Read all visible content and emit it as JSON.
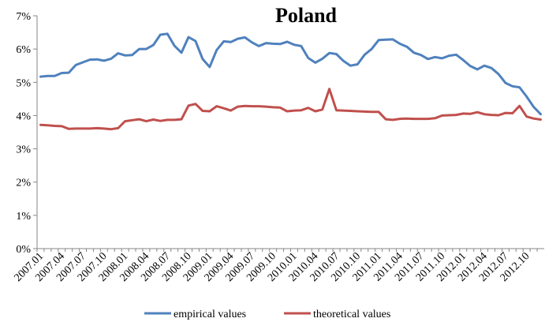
{
  "chart_data": {
    "type": "line",
    "title": "Poland",
    "xlabel": "",
    "ylabel": "",
    "ylim": [
      0,
      7
    ],
    "y_ticks": [
      "0%",
      "1%",
      "2%",
      "3%",
      "4%",
      "5%",
      "6%",
      "7%"
    ],
    "grid": false,
    "legend_position": "bottom",
    "x_tick_labels": [
      "2007.01",
      "2007.04",
      "2007.07",
      "2007.10",
      "2008.01",
      "2008.04",
      "2008.07",
      "2008.10",
      "2009.01",
      "2009.04",
      "2009.07",
      "2009.10",
      "2010.01",
      "2010.04",
      "2010.07",
      "2010.10",
      "2011.01",
      "2011.04",
      "2011.07",
      "2011.10",
      "2012.01",
      "2012.04",
      "2012.07",
      "2012.10"
    ],
    "x": [
      "2007.01",
      "2007.02",
      "2007.03",
      "2007.04",
      "2007.05",
      "2007.06",
      "2007.07",
      "2007.08",
      "2007.09",
      "2007.10",
      "2007.11",
      "2007.12",
      "2008.01",
      "2008.02",
      "2008.03",
      "2008.04",
      "2008.05",
      "2008.06",
      "2008.07",
      "2008.08",
      "2008.09",
      "2008.10",
      "2008.11",
      "2008.12",
      "2009.01",
      "2009.02",
      "2009.03",
      "2009.04",
      "2009.05",
      "2009.06",
      "2009.07",
      "2009.08",
      "2009.09",
      "2009.10",
      "2009.11",
      "2009.12",
      "2010.01",
      "2010.02",
      "2010.03",
      "2010.04",
      "2010.05",
      "2010.06",
      "2010.07",
      "2010.08",
      "2010.09",
      "2010.10",
      "2010.11",
      "2010.12",
      "2011.01",
      "2011.02",
      "2011.03",
      "2011.04",
      "2011.05",
      "2011.06",
      "2011.07",
      "2011.08",
      "2011.09",
      "2011.10",
      "2011.11",
      "2011.12",
      "2012.01",
      "2012.02",
      "2012.03",
      "2012.04",
      "2012.05",
      "2012.06",
      "2012.07",
      "2012.08",
      "2012.09",
      "2012.10",
      "2012.11",
      "2012.12"
    ],
    "series": [
      {
        "name": "empirical values",
        "color": "#4F81BD",
        "values": [
          5.17,
          5.19,
          5.19,
          5.28,
          5.29,
          5.52,
          5.6,
          5.68,
          5.69,
          5.65,
          5.71,
          5.87,
          5.81,
          5.82,
          6.0,
          6.0,
          6.12,
          6.43,
          6.46,
          6.1,
          5.89,
          6.36,
          6.24,
          5.7,
          5.46,
          5.97,
          6.23,
          6.21,
          6.31,
          6.35,
          6.2,
          6.09,
          6.18,
          6.16,
          6.15,
          6.22,
          6.13,
          6.09,
          5.73,
          5.59,
          5.71,
          5.88,
          5.85,
          5.64,
          5.5,
          5.54,
          5.83,
          6.0,
          6.27,
          6.28,
          6.29,
          6.16,
          6.07,
          5.89,
          5.82,
          5.7,
          5.76,
          5.72,
          5.8,
          5.83,
          5.67,
          5.49,
          5.39,
          5.5,
          5.43,
          5.25,
          4.98,
          4.88,
          4.85,
          4.57,
          4.26,
          4.04
        ]
      },
      {
        "name": "theoretical values",
        "color": "#C0504D",
        "values": [
          3.72,
          3.71,
          3.69,
          3.68,
          3.6,
          3.61,
          3.61,
          3.61,
          3.62,
          3.61,
          3.59,
          3.62,
          3.83,
          3.86,
          3.89,
          3.83,
          3.88,
          3.84,
          3.87,
          3.87,
          3.89,
          4.3,
          4.35,
          4.14,
          4.13,
          4.28,
          4.22,
          4.15,
          4.27,
          4.29,
          4.28,
          4.28,
          4.27,
          4.25,
          4.24,
          4.13,
          4.15,
          4.16,
          4.23,
          4.13,
          4.18,
          4.8,
          4.16,
          4.15,
          4.14,
          4.13,
          4.12,
          4.11,
          4.11,
          3.89,
          3.87,
          3.9,
          3.91,
          3.9,
          3.9,
          3.9,
          3.92,
          4.0,
          4.01,
          4.02,
          4.06,
          4.05,
          4.1,
          4.04,
          4.02,
          4.01,
          4.08,
          4.07,
          4.29,
          3.97,
          3.91,
          3.88
        ]
      }
    ]
  }
}
